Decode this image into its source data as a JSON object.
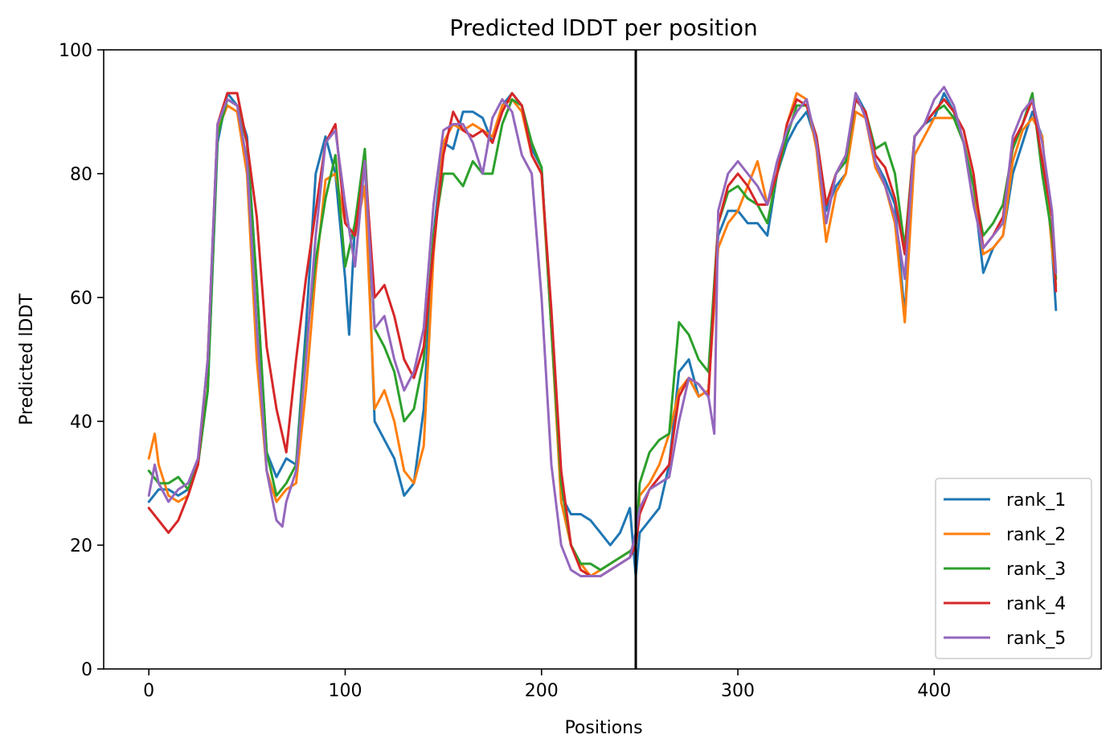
{
  "chart_data": {
    "type": "line",
    "title": "Predicted lDDT per position",
    "xlabel": "Positions",
    "ylabel": "Predicted lDDT",
    "xlim": [
      -23,
      485
    ],
    "ylim": [
      0,
      100
    ],
    "xticks": [
      0,
      100,
      200,
      300,
      400
    ],
    "yticks": [
      0,
      20,
      40,
      60,
      80,
      100
    ],
    "grid": false,
    "legend_position": "lower-right",
    "vline": 248,
    "series": [
      {
        "name": "rank_1",
        "color": "#1f77b4",
        "x": [
          0,
          5,
          10,
          15,
          20,
          25,
          30,
          35,
          40,
          45,
          50,
          55,
          60,
          65,
          70,
          75,
          80,
          85,
          90,
          95,
          100,
          102,
          105,
          110,
          115,
          120,
          125,
          130,
          135,
          140,
          145,
          150,
          155,
          160,
          165,
          170,
          175,
          180,
          185,
          190,
          195,
          200,
          205,
          210,
          215,
          220,
          225,
          230,
          235,
          240,
          245,
          248,
          250,
          255,
          260,
          265,
          270,
          275,
          280,
          285,
          290,
          295,
          300,
          305,
          310,
          315,
          320,
          325,
          330,
          335,
          340,
          345,
          350,
          355,
          360,
          365,
          370,
          375,
          380,
          385,
          390,
          395,
          400,
          405,
          410,
          415,
          420,
          425,
          430,
          435,
          440,
          445,
          450,
          455,
          460,
          462
        ],
        "y": [
          27,
          29,
          29,
          28,
          29,
          33,
          45,
          85,
          93,
          91,
          86,
          62,
          35,
          31,
          34,
          33,
          55,
          80,
          86,
          80,
          63,
          54,
          72,
          83,
          40,
          37,
          34,
          28,
          30,
          42,
          70,
          85,
          84,
          90,
          90,
          89,
          85,
          91,
          93,
          91,
          84,
          81,
          55,
          28,
          25,
          25,
          24,
          22,
          20,
          22,
          26,
          15,
          22,
          24,
          26,
          33,
          48,
          50,
          44,
          45,
          70,
          74,
          74,
          72,
          72,
          70,
          80,
          85,
          88,
          90,
          85,
          74,
          78,
          80,
          93,
          90,
          82,
          79,
          75,
          57,
          86,
          88,
          89,
          93,
          90,
          85,
          78,
          64,
          68,
          70,
          80,
          85,
          90,
          86,
          68,
          58
        ]
      },
      {
        "name": "rank_2",
        "color": "#ff7f0e",
        "x": [
          0,
          3,
          5,
          10,
          15,
          20,
          25,
          30,
          35,
          40,
          45,
          50,
          55,
          60,
          65,
          70,
          75,
          80,
          85,
          90,
          95,
          100,
          105,
          110,
          115,
          120,
          125,
          130,
          135,
          140,
          145,
          150,
          155,
          160,
          165,
          170,
          175,
          180,
          185,
          190,
          195,
          200,
          205,
          210,
          215,
          220,
          225,
          230,
          235,
          240,
          245,
          248,
          250,
          255,
          260,
          265,
          270,
          275,
          280,
          285,
          290,
          295,
          300,
          305,
          310,
          315,
          320,
          325,
          330,
          335,
          340,
          345,
          350,
          355,
          360,
          365,
          370,
          375,
          380,
          385,
          390,
          395,
          400,
          405,
          410,
          415,
          420,
          425,
          430,
          435,
          440,
          445,
          450,
          455,
          460,
          462
        ],
        "y": [
          34,
          38,
          33,
          28,
          27,
          28,
          33,
          50,
          87,
          91,
          90,
          80,
          50,
          32,
          27,
          29,
          30,
          45,
          64,
          79,
          80,
          72,
          70,
          78,
          42,
          45,
          40,
          32,
          30,
          36,
          67,
          85,
          88,
          87,
          88,
          87,
          86,
          91,
          92,
          90,
          83,
          80,
          55,
          27,
          20,
          17,
          15,
          16,
          17,
          18,
          19,
          20,
          28,
          30,
          33,
          38,
          45,
          47,
          44,
          45,
          68,
          72,
          74,
          78,
          82,
          75,
          80,
          88,
          93,
          92,
          84,
          69,
          77,
          80,
          90,
          89,
          81,
          78,
          72,
          56,
          83,
          86,
          89,
          89,
          89,
          85,
          78,
          67,
          68,
          70,
          82,
          87,
          89,
          86,
          68,
          62
        ]
      },
      {
        "name": "rank_3",
        "color": "#2ca02c",
        "x": [
          0,
          5,
          10,
          15,
          20,
          25,
          30,
          35,
          40,
          45,
          50,
          55,
          60,
          65,
          70,
          75,
          80,
          85,
          90,
          95,
          100,
          105,
          110,
          115,
          120,
          125,
          130,
          135,
          140,
          145,
          150,
          155,
          160,
          165,
          170,
          175,
          180,
          185,
          190,
          195,
          200,
          205,
          210,
          215,
          220,
          225,
          230,
          235,
          240,
          245,
          248,
          250,
          255,
          260,
          265,
          270,
          275,
          280,
          285,
          290,
          295,
          300,
          305,
          310,
          315,
          320,
          325,
          330,
          335,
          340,
          345,
          350,
          355,
          360,
          365,
          370,
          375,
          380,
          385,
          390,
          395,
          400,
          405,
          410,
          415,
          420,
          425,
          430,
          435,
          440,
          445,
          450,
          455,
          460,
          462
        ],
        "y": [
          32,
          30,
          30,
          31,
          29,
          33,
          45,
          86,
          92,
          91,
          85,
          62,
          35,
          28,
          30,
          33,
          52,
          66,
          76,
          83,
          65,
          72,
          84,
          55,
          52,
          48,
          40,
          42,
          50,
          70,
          80,
          80,
          78,
          82,
          80,
          80,
          88,
          92,
          91,
          85,
          81,
          55,
          30,
          20,
          17,
          17,
          16,
          17,
          18,
          19,
          20,
          30,
          35,
          37,
          38,
          56,
          54,
          50,
          48,
          72,
          77,
          78,
          76,
          75,
          72,
          80,
          86,
          91,
          91,
          86,
          75,
          80,
          82,
          92,
          90,
          84,
          85,
          80,
          68,
          86,
          88,
          90,
          91,
          89,
          85,
          78,
          70,
          72,
          75,
          84,
          88,
          93,
          80,
          70,
          63
        ]
      },
      {
        "name": "rank_4",
        "color": "#d62728",
        "x": [
          0,
          5,
          10,
          15,
          20,
          25,
          30,
          35,
          40,
          45,
          50,
          55,
          60,
          65,
          70,
          75,
          80,
          85,
          90,
          95,
          100,
          105,
          110,
          115,
          120,
          125,
          130,
          135,
          140,
          145,
          150,
          155,
          160,
          165,
          170,
          175,
          180,
          185,
          190,
          195,
          200,
          205,
          210,
          215,
          220,
          225,
          230,
          235,
          240,
          245,
          248,
          250,
          255,
          260,
          265,
          270,
          275,
          280,
          285,
          290,
          295,
          300,
          305,
          310,
          315,
          320,
          325,
          330,
          335,
          340,
          345,
          350,
          355,
          360,
          365,
          370,
          375,
          380,
          385,
          390,
          395,
          400,
          405,
          410,
          415,
          420,
          425,
          430,
          435,
          440,
          445,
          450,
          455,
          460,
          462
        ],
        "y": [
          26,
          24,
          22,
          24,
          28,
          33,
          50,
          88,
          93,
          93,
          85,
          73,
          52,
          42,
          35,
          50,
          63,
          74,
          85,
          88,
          72,
          70,
          82,
          60,
          62,
          57,
          50,
          47,
          52,
          68,
          83,
          90,
          87,
          86,
          87,
          85,
          90,
          93,
          91,
          83,
          80,
          58,
          32,
          20,
          16,
          15,
          15,
          16,
          17,
          18,
          20,
          25,
          29,
          31,
          33,
          44,
          47,
          46,
          44,
          72,
          78,
          80,
          78,
          75,
          75,
          80,
          88,
          92,
          91,
          86,
          75,
          80,
          83,
          92,
          90,
          83,
          81,
          76,
          67,
          86,
          88,
          90,
          92,
          90,
          87,
          80,
          68,
          70,
          73,
          85,
          88,
          92,
          82,
          73,
          61
        ]
      },
      {
        "name": "rank_5",
        "color": "#9467bd",
        "x": [
          0,
          3,
          5,
          10,
          15,
          20,
          25,
          30,
          35,
          40,
          45,
          50,
          55,
          60,
          65,
          68,
          70,
          75,
          80,
          85,
          90,
          95,
          100,
          105,
          110,
          115,
          120,
          125,
          130,
          135,
          140,
          145,
          150,
          155,
          160,
          165,
          170,
          175,
          180,
          185,
          190,
          195,
          200,
          205,
          210,
          215,
          220,
          225,
          230,
          235,
          240,
          245,
          248,
          250,
          255,
          260,
          265,
          270,
          275,
          280,
          285,
          288,
          290,
          295,
          300,
          305,
          310,
          315,
          320,
          325,
          330,
          335,
          340,
          345,
          350,
          355,
          360,
          365,
          370,
          375,
          380,
          385,
          390,
          395,
          400,
          405,
          410,
          415,
          420,
          425,
          430,
          435,
          440,
          445,
          450,
          455,
          460,
          462
        ],
        "y": [
          28,
          33,
          30,
          27,
          29,
          30,
          34,
          50,
          88,
          92,
          91,
          82,
          55,
          32,
          24,
          23,
          27,
          32,
          50,
          70,
          85,
          87,
          75,
          65,
          82,
          55,
          57,
          50,
          45,
          48,
          55,
          75,
          87,
          88,
          88,
          85,
          80,
          89,
          92,
          90,
          83,
          80,
          60,
          33,
          20,
          16,
          15,
          15,
          15,
          16,
          17,
          18,
          22,
          26,
          29,
          30,
          31,
          40,
          47,
          46,
          44,
          38,
          74,
          80,
          82,
          80,
          78,
          75,
          82,
          87,
          90,
          92,
          85,
          72,
          80,
          83,
          93,
          89,
          82,
          78,
          73,
          63,
          86,
          88,
          92,
          94,
          91,
          85,
          75,
          68,
          70,
          72,
          86,
          90,
          92,
          85,
          74,
          64
        ]
      }
    ]
  }
}
